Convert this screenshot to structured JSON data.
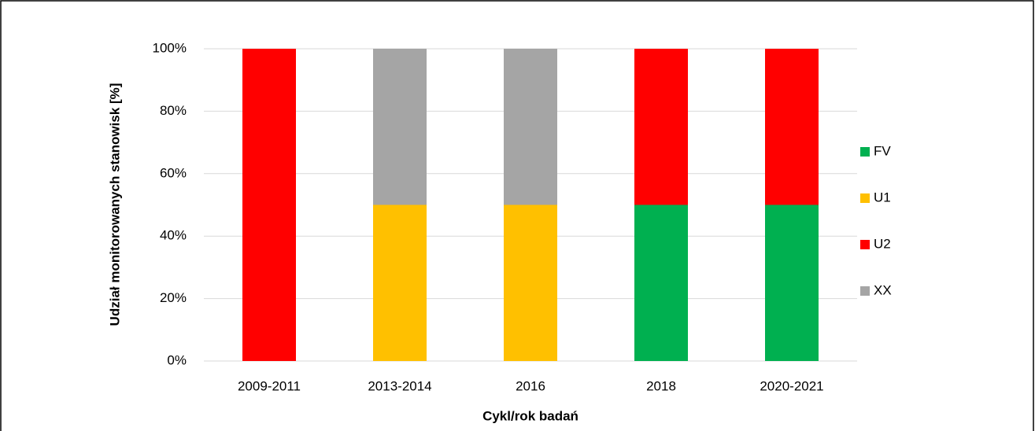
{
  "chart_data": {
    "type": "stacked_bar",
    "y_label": "Udział monitorowanych stanowisk [%]",
    "x_label": "Cykl/rok badań",
    "categories": [
      "2009-2011",
      "2013-2014",
      "2016",
      "2018",
      "2020-2021"
    ],
    "series": [
      {
        "name": "FV",
        "color": "#00b050",
        "values": [
          0,
          0,
          0,
          50,
          50
        ]
      },
      {
        "name": "U1",
        "color": "#ffc000",
        "values": [
          0,
          50,
          50,
          0,
          0
        ]
      },
      {
        "name": "U2",
        "color": "#ff0000",
        "values": [
          100,
          0,
          0,
          50,
          50
        ]
      },
      {
        "name": "XX",
        "color": "#a5a5a5",
        "values": [
          0,
          50,
          50,
          0,
          0
        ]
      }
    ],
    "ylim": [
      0,
      100
    ],
    "yticks": [
      {
        "value": 0,
        "label": "0%"
      },
      {
        "value": 20,
        "label": "20%"
      },
      {
        "value": 40,
        "label": "40%"
      },
      {
        "value": 60,
        "label": "60%"
      },
      {
        "value": 80,
        "label": "80%"
      },
      {
        "value": 100,
        "label": "100%"
      }
    ],
    "grid": true,
    "legend": "right"
  }
}
